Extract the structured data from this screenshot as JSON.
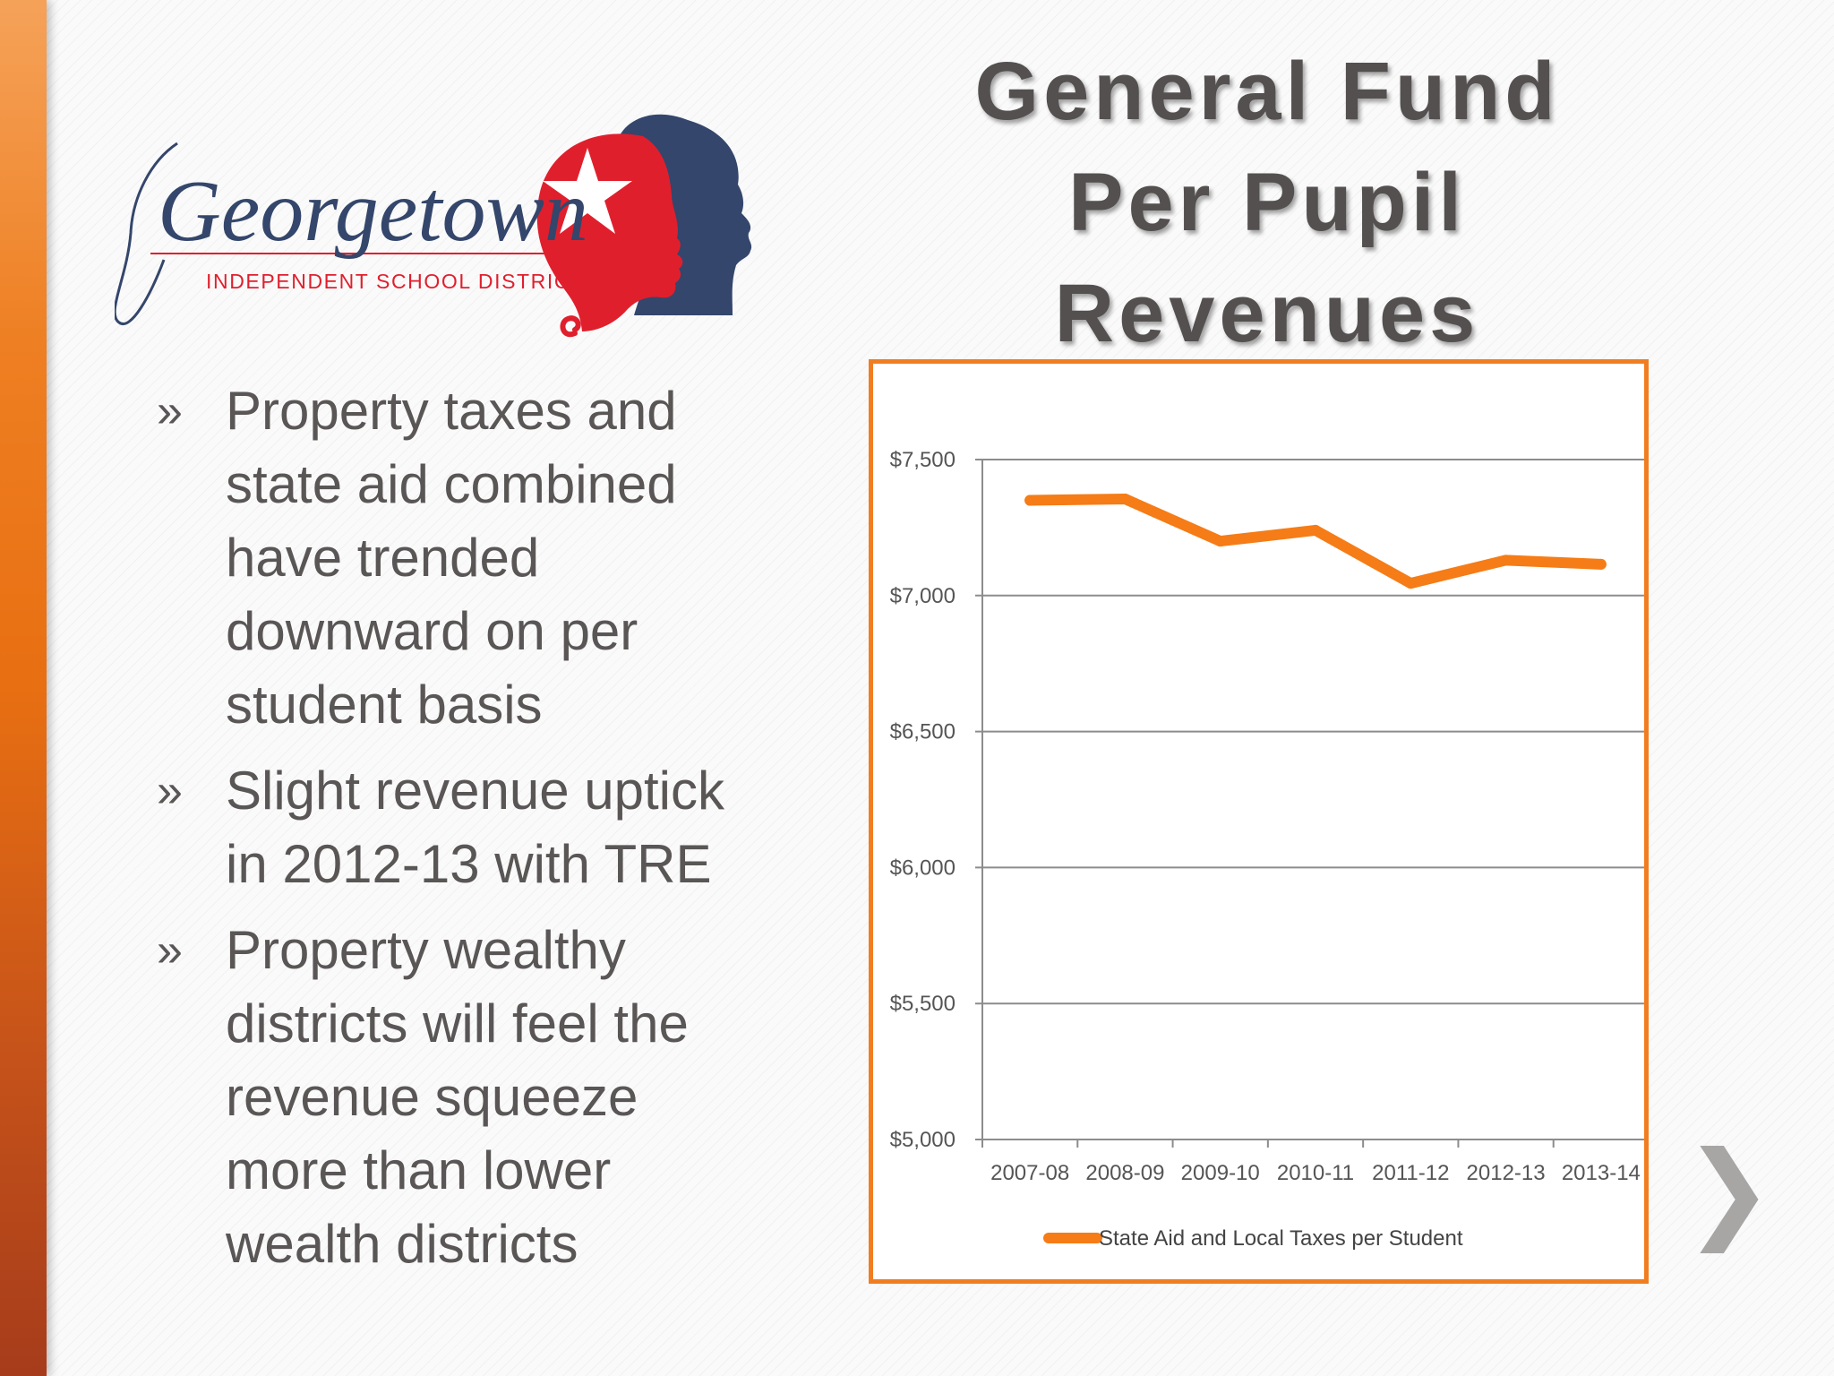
{
  "slide": {
    "title_lines": [
      "General Fund",
      "Per Pupil",
      "Revenues"
    ],
    "colors": {
      "accent": "#f07e21",
      "title": "#555050",
      "text": "#5a5656",
      "logo_navy": "#34466b",
      "logo_red": "#e01f2d"
    }
  },
  "logo": {
    "wordmark": "Georgetown",
    "subtitle": "INDEPENDENT SCHOOL DISTRICT"
  },
  "bullets": [
    {
      "marker": "»",
      "lines": [
        "Property taxes and",
        "state aid combined",
        "have trended",
        "downward on per",
        "student basis"
      ]
    },
    {
      "marker": "»",
      "lines": [
        "Slight revenue uptick",
        "in 2012-13 with TRE"
      ]
    },
    {
      "marker": "»",
      "lines": [
        "Property wealthy",
        "districts will feel the",
        "revenue squeeze",
        "more than lower",
        "wealth districts"
      ]
    }
  ],
  "chart_data": {
    "type": "line",
    "title": "",
    "xlabel": "",
    "ylabel": "",
    "categories": [
      "2007-08",
      "2008-09",
      "2009-10",
      "2010-11",
      "2011-12",
      "2012-13",
      "2013-14"
    ],
    "series": [
      {
        "name": "State Aid and Local Taxes per Student",
        "color": "#f57c16",
        "values": [
          7350,
          7355,
          7200,
          7240,
          7045,
          7130,
          7115
        ]
      }
    ],
    "ylim": [
      5000,
      7500
    ],
    "yticks": [
      5000,
      5500,
      6000,
      6500,
      7000,
      7500
    ],
    "ytick_labels": [
      "$5,000",
      "$5,500",
      "$6,000",
      "$6,500",
      "$7,000",
      "$7,500"
    ],
    "grid": true,
    "legend_position": "bottom"
  },
  "nav": {
    "next_icon": "chevron-right-icon",
    "next_glyph": "❯"
  }
}
